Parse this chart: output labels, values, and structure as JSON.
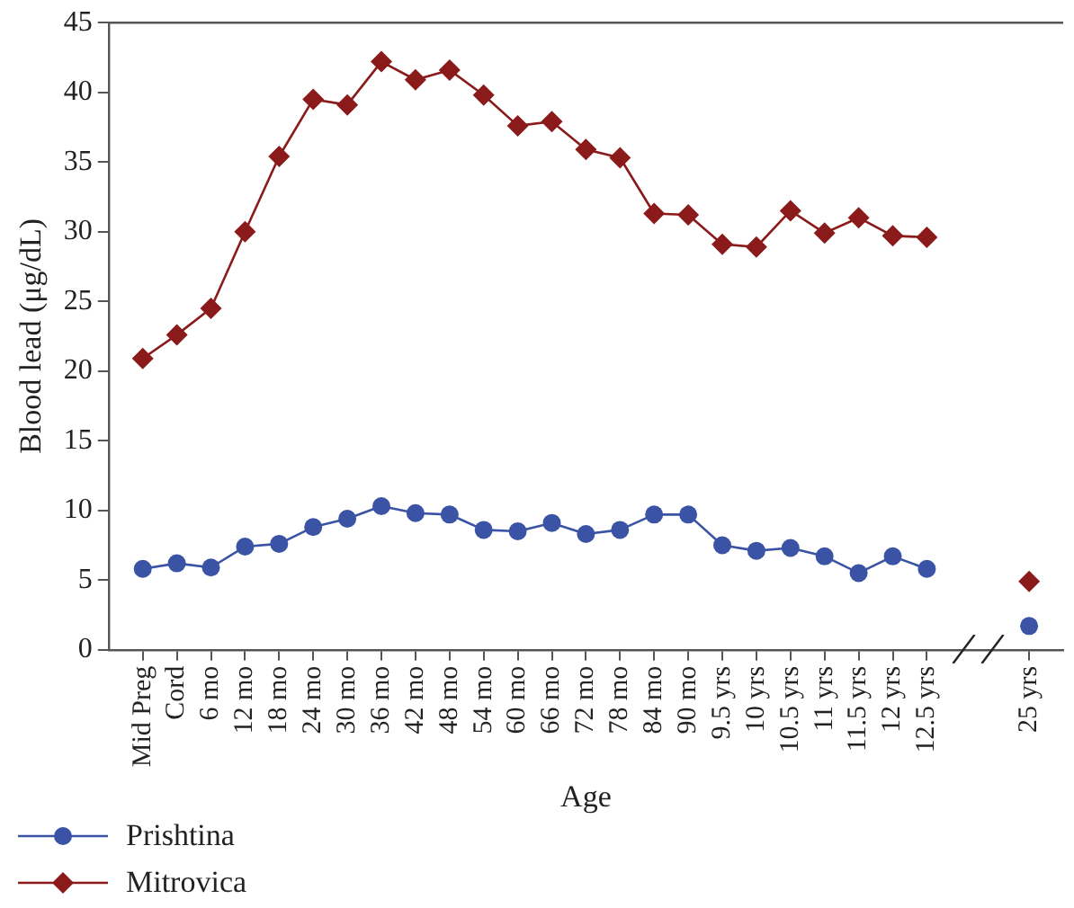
{
  "chart_data": {
    "type": "line",
    "xlabel": "Age",
    "ylabel": "Blood lead (μg/dL)",
    "categories": [
      "Mid Preg",
      "Cord",
      "6 mo",
      "12 mo",
      "18 mo",
      "24 mo",
      "30 mo",
      "36 mo",
      "42 mo",
      "48 mo",
      "54 mo",
      "60 mo",
      "66 mo",
      "72 mo",
      "78 mo",
      "84 mo",
      "90 mo",
      "9.5 yrs",
      "10 yrs",
      "10.5 yrs",
      "11 yrs",
      "11.5 yrs",
      "12 yrs",
      "12.5 yrs",
      null,
      null,
      "25 yrs"
    ],
    "series": [
      {
        "name": "Prishtina",
        "color": "#3a53a4",
        "marker": "circle",
        "values": [
          5.8,
          6.2,
          5.9,
          7.4,
          7.6,
          8.8,
          9.4,
          10.3,
          9.8,
          9.7,
          8.6,
          8.5,
          9.1,
          8.3,
          8.6,
          9.7,
          9.7,
          7.5,
          7.1,
          7.3,
          6.7,
          5.5,
          6.7,
          5.8,
          null,
          null,
          1.7
        ]
      },
      {
        "name": "Mitrovica",
        "color": "#8b1a1a",
        "marker": "diamond",
        "values": [
          20.9,
          22.6,
          24.5,
          30.0,
          35.4,
          39.5,
          39.1,
          42.2,
          40.9,
          41.6,
          39.8,
          37.6,
          37.9,
          35.9,
          35.3,
          31.3,
          31.2,
          29.1,
          28.9,
          31.5,
          29.9,
          31.0,
          29.7,
          29.6,
          null,
          null,
          4.9
        ]
      }
    ],
    "ylim": [
      0,
      45
    ],
    "yticks": [
      0,
      5,
      10,
      15,
      20,
      25,
      30,
      35,
      40,
      45
    ],
    "grid": false,
    "legend": "bottom left",
    "line_style": "solid"
  }
}
